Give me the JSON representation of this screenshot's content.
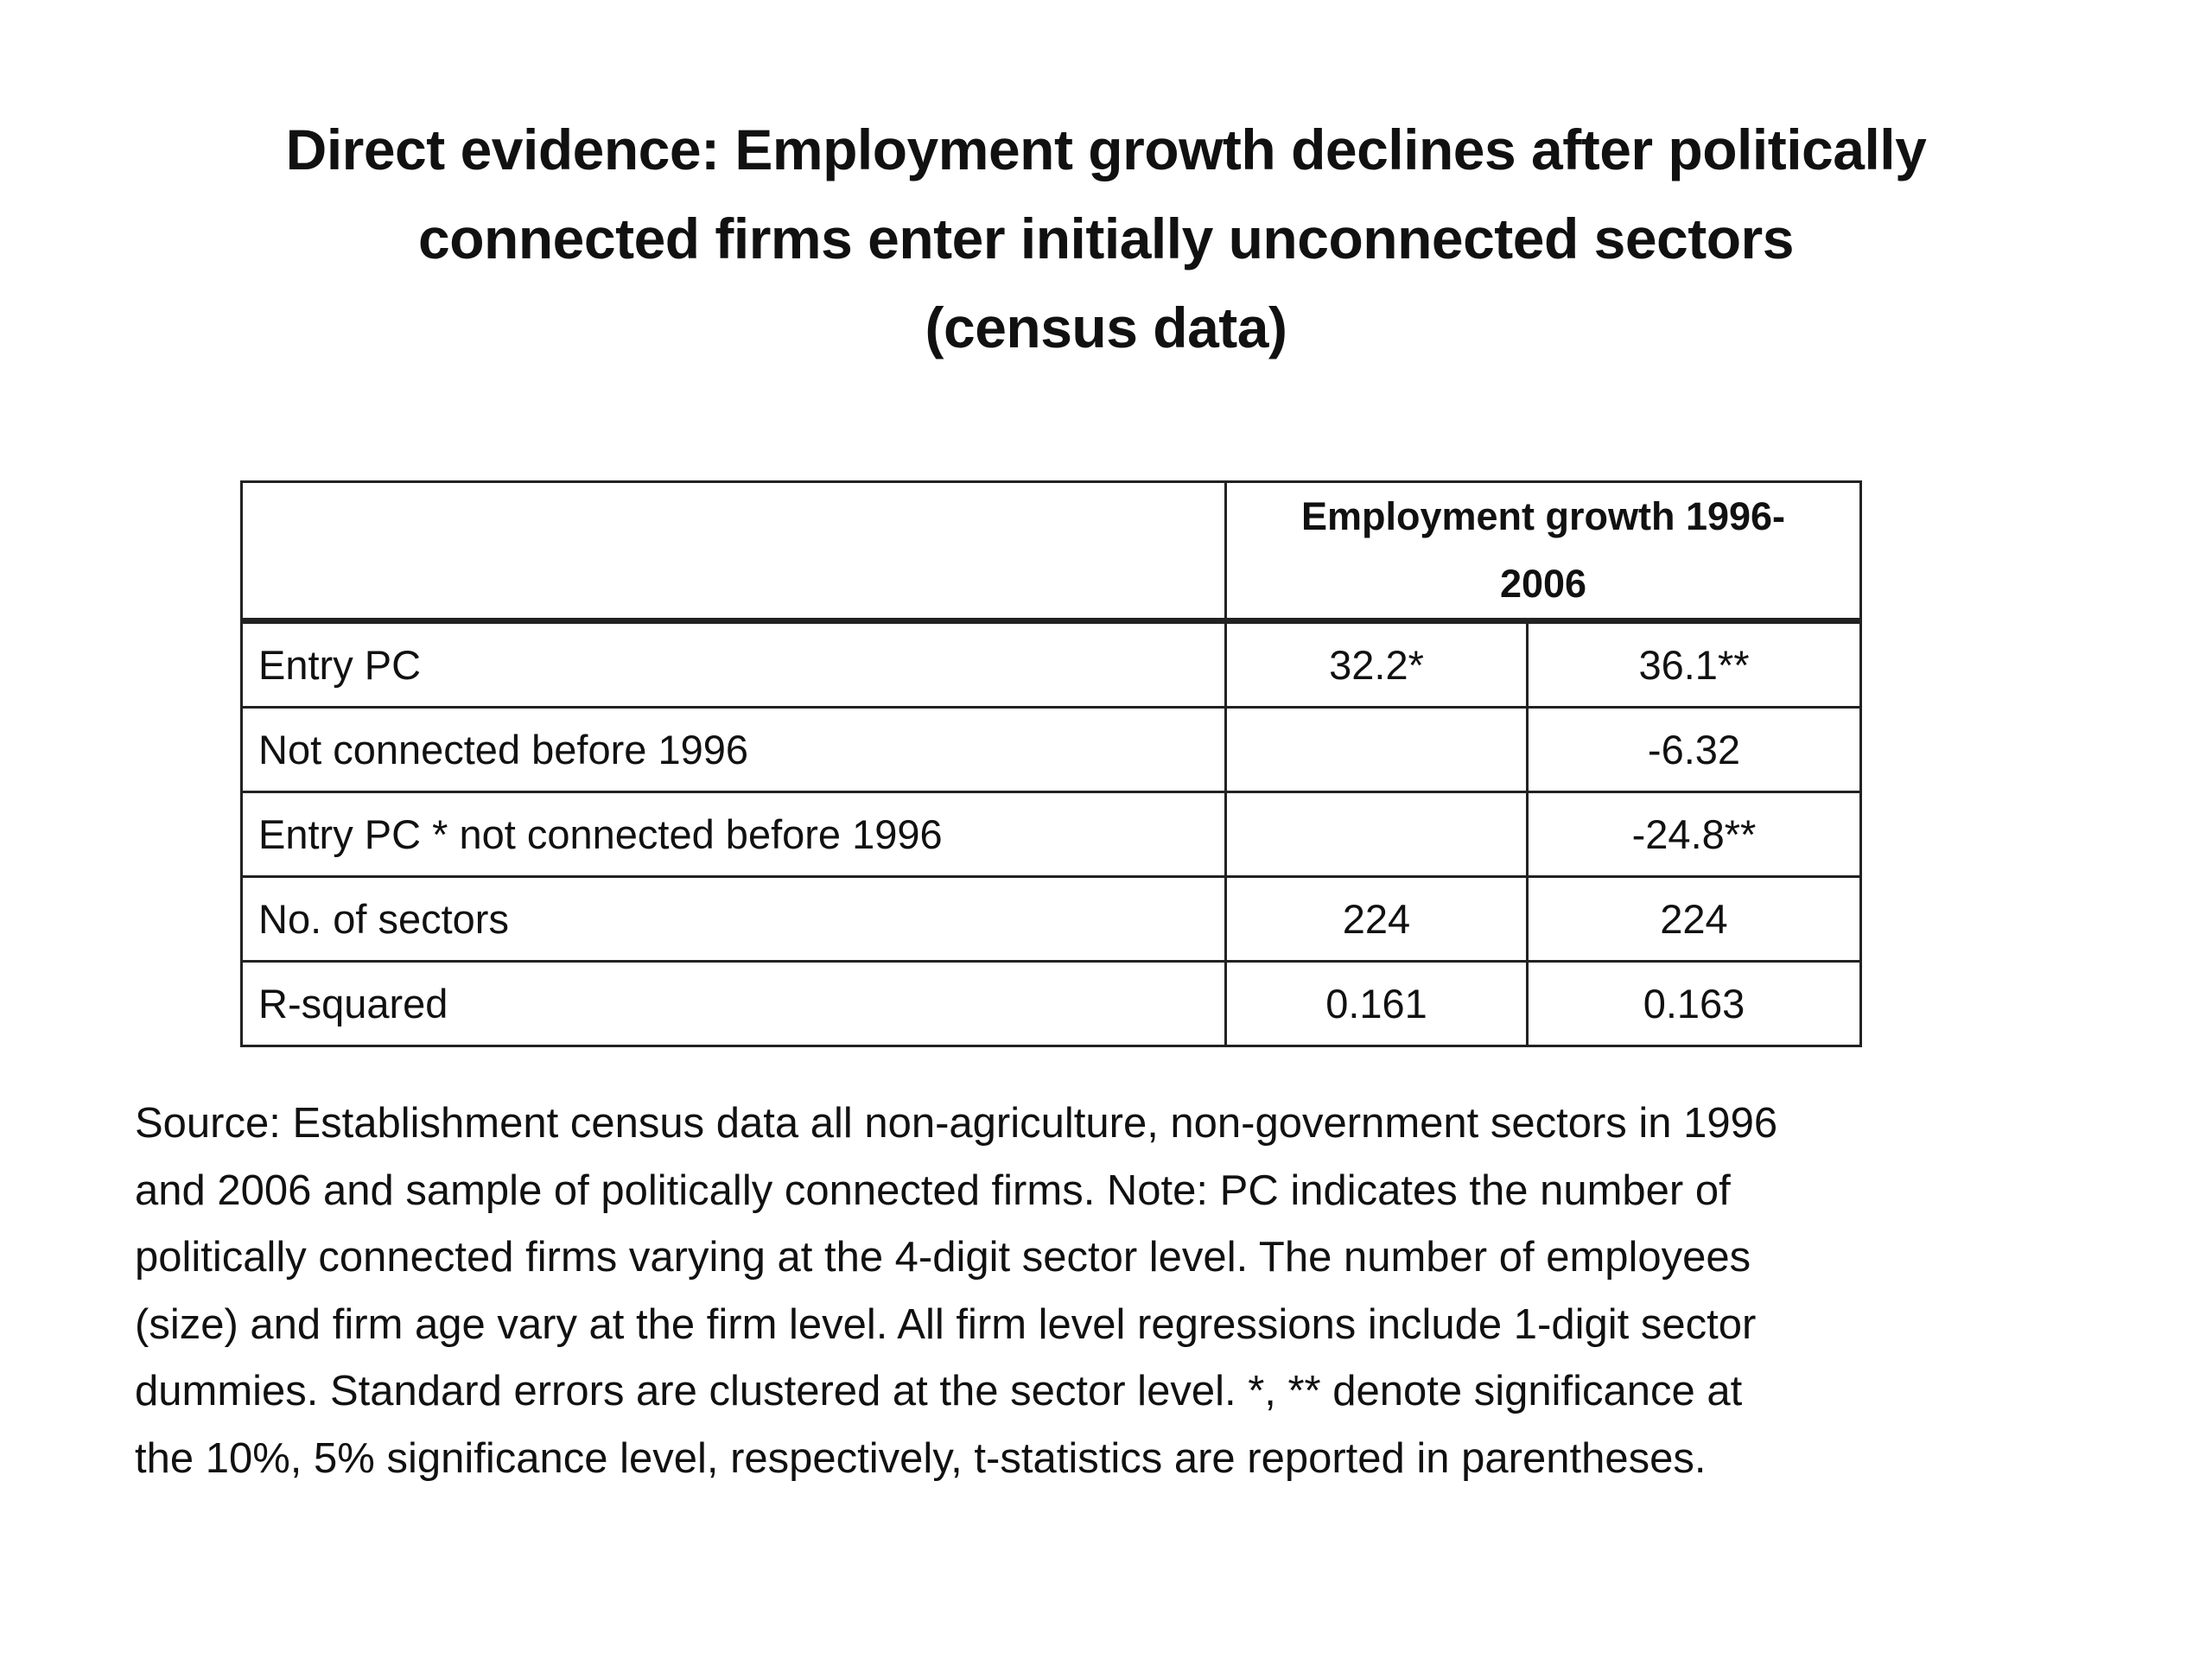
{
  "title": {
    "lines": [
      "Direct evidence: Employment growth declines after politically",
      "connected firms enter initially unconnected sectors",
      "(census data)"
    ]
  },
  "table": {
    "header": {
      "corner": "",
      "column_group": "Employment growth 1996-2006"
    },
    "rows": [
      {
        "label": "Entry PC",
        "c1": "32.2*",
        "c2": "36.1**"
      },
      {
        "label": "Not connected before 1996",
        "c1": "",
        "c2": "-6.32"
      },
      {
        "label": "Entry PC * not connected before 1996",
        "c1": "",
        "c2": "-24.8**"
      },
      {
        "label": "No. of sectors",
        "c1": "224",
        "c2": "224"
      },
      {
        "label": "R-squared",
        "c1": "0.161",
        "c2": "0.163"
      }
    ]
  },
  "source": {
    "lines": [
      "Source: Establishment census data all non-agriculture, non-government sectors in 1996",
      "and 2006 and sample of politically connected firms. Note: PC indicates the number of",
      "politically connected firms varying at the 4-digit sector level. The number of employees",
      "(size) and firm age vary at the firm level. All firm level regressions include 1-digit sector",
      "dummies. Standard errors are clustered at the sector level. *, ** denote significance at",
      "the 10%, 5% significance level, respectively, t-statistics are reported in parentheses."
    ]
  }
}
